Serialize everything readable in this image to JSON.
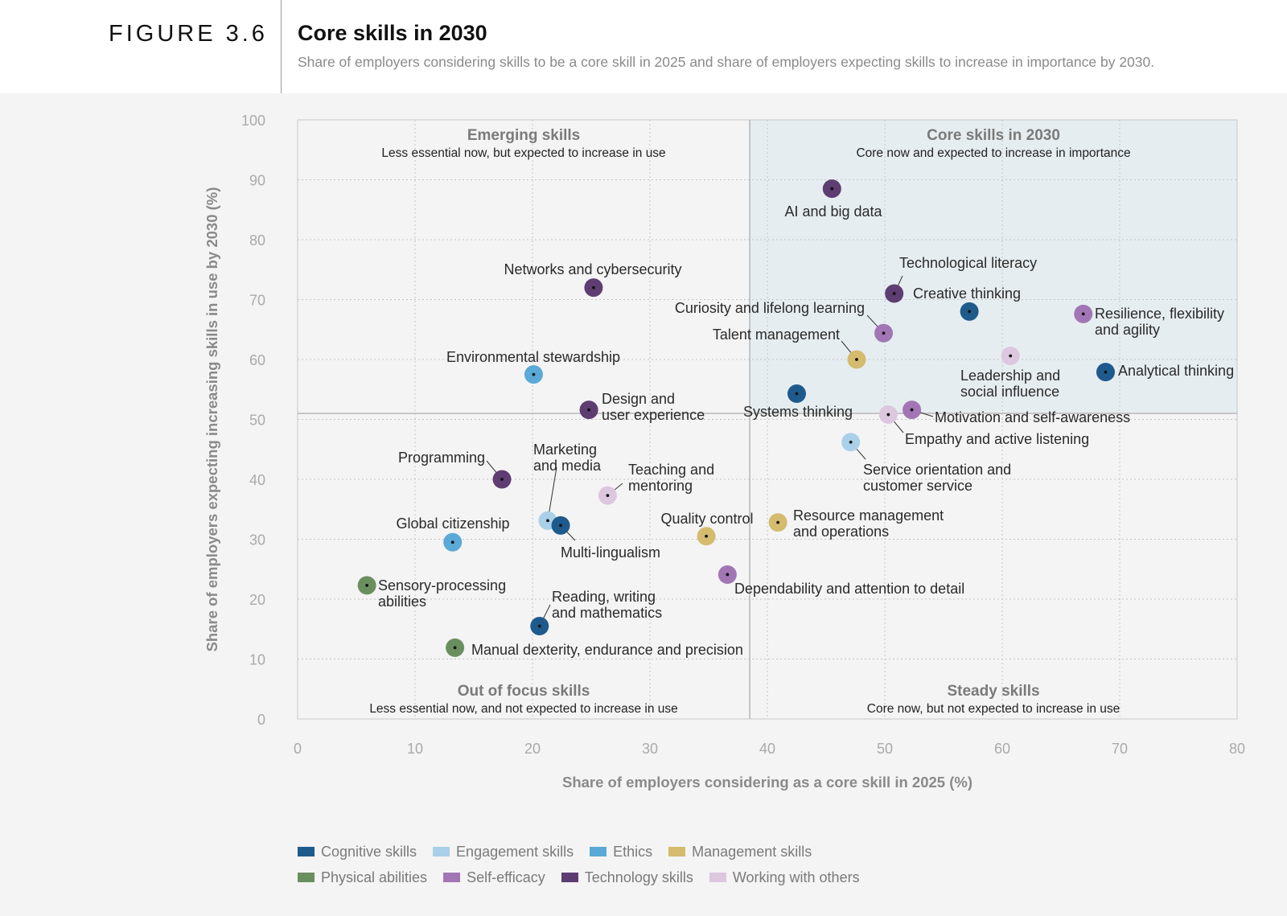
{
  "header": {
    "figure_label": "FIGURE 3.6",
    "title": "Core skills in 2030",
    "subtitle": "Share of employers considering skills to be a core skill in 2025 and share of employers expecting skills to increase in importance by 2030."
  },
  "chart_data": {
    "type": "scatter",
    "xlabel": "Share of employers considering as a core skill in 2025 (%)",
    "ylabel": "Share of employers expecting increasing skills in use by 2030 (%)",
    "xlim": [
      0,
      80
    ],
    "ylim": [
      0,
      100
    ],
    "x_ticks": [
      0,
      10,
      20,
      30,
      40,
      50,
      60,
      70,
      80
    ],
    "y_ticks": [
      0,
      10,
      20,
      30,
      40,
      50,
      60,
      70,
      80,
      90,
      100
    ],
    "grid": "dotted",
    "divider_x": 38.5,
    "divider_y": 51,
    "quadrants": [
      {
        "title": "Emerging skills",
        "subtitle": "Less essential now, but expected to increase in use",
        "position": "top-left"
      },
      {
        "title": "Core skills in 2030",
        "subtitle": "Core now and expected to increase in importance",
        "position": "top-right"
      },
      {
        "title": "Out of focus skills",
        "subtitle": "Less essential now, and not expected to increase in use",
        "position": "bottom-left"
      },
      {
        "title": "Steady skills",
        "subtitle": "Core now, but not expected to increase in use",
        "position": "bottom-right"
      }
    ],
    "categories": [
      {
        "name": "Cognitive skills",
        "color": "#1f5a8c"
      },
      {
        "name": "Engagement skills",
        "color": "#a9d0e8"
      },
      {
        "name": "Ethics",
        "color": "#5aa9d6"
      },
      {
        "name": "Management skills",
        "color": "#d4bb6e"
      },
      {
        "name": "Physical abilities",
        "color": "#6a8f5f"
      },
      {
        "name": "Self-efficacy",
        "color": "#a276b5"
      },
      {
        "name": "Technology skills",
        "color": "#5e3d72"
      },
      {
        "name": "Working with others",
        "color": "#dcc7de"
      }
    ],
    "points": [
      {
        "label": "AI and big data",
        "category": "Technology skills",
        "x": 45.5,
        "y": 88.5
      },
      {
        "label": "Technological literacy",
        "category": "Technology skills",
        "x": 50.8,
        "y": 71
      },
      {
        "label": "Networks and cybersecurity",
        "category": "Technology skills",
        "x": 25.2,
        "y": 72
      },
      {
        "label": "Creative thinking",
        "category": "Cognitive skills",
        "x": 57.2,
        "y": 68
      },
      {
        "label": "Resilience, flexibility and agility",
        "category": "Self-efficacy",
        "x": 66.9,
        "y": 67.6
      },
      {
        "label": "Curiosity and lifelong learning",
        "category": "Self-efficacy",
        "x": 49.9,
        "y": 64.4
      },
      {
        "label": "Talent management",
        "category": "Management skills",
        "x": 47.6,
        "y": 60
      },
      {
        "label": "Leadership and social influence",
        "category": "Working with others",
        "x": 60.7,
        "y": 60.6
      },
      {
        "label": "Analytical thinking",
        "category": "Cognitive skills",
        "x": 68.8,
        "y": 57.9
      },
      {
        "label": "Environmental stewardship",
        "category": "Ethics",
        "x": 20.1,
        "y": 57.5
      },
      {
        "label": "Systems thinking",
        "category": "Cognitive skills",
        "x": 42.5,
        "y": 54.3
      },
      {
        "label": "Design and user experience",
        "category": "Technology skills",
        "x": 24.8,
        "y": 51.6
      },
      {
        "label": "Motivation and self-awareness",
        "category": "Self-efficacy",
        "x": 52.3,
        "y": 51.6
      },
      {
        "label": "Empathy and active listening",
        "category": "Working with others",
        "x": 50.3,
        "y": 50.8
      },
      {
        "label": "Service orientation and customer service",
        "category": "Engagement skills",
        "x": 47.1,
        "y": 46.2
      },
      {
        "label": "Programming",
        "category": "Technology skills",
        "x": 17.4,
        "y": 40
      },
      {
        "label": "Teaching and mentoring",
        "category": "Working with others",
        "x": 26.4,
        "y": 37.3
      },
      {
        "label": "Marketing and media",
        "category": "Engagement skills",
        "x": 21.3,
        "y": 33.1
      },
      {
        "label": "Multi-lingualism",
        "category": "Cognitive skills",
        "x": 22.4,
        "y": 32.3
      },
      {
        "label": "Resource management and operations",
        "category": "Management skills",
        "x": 40.9,
        "y": 32.8
      },
      {
        "label": "Quality control",
        "category": "Management skills",
        "x": 34.8,
        "y": 30.5
      },
      {
        "label": "Global citizenship",
        "category": "Ethics",
        "x": 13.2,
        "y": 29.5
      },
      {
        "label": "Dependability and attention to detail",
        "category": "Self-efficacy",
        "x": 36.6,
        "y": 24.1
      },
      {
        "label": "Sensory-processing abilities",
        "category": "Physical abilities",
        "x": 5.9,
        "y": 22.3
      },
      {
        "label": "Reading, writing and mathematics",
        "category": "Cognitive skills",
        "x": 20.6,
        "y": 15.5
      },
      {
        "label": "Manual dexterity, endurance and precision",
        "category": "Physical abilities",
        "x": 13.4,
        "y": 11.9
      }
    ]
  }
}
